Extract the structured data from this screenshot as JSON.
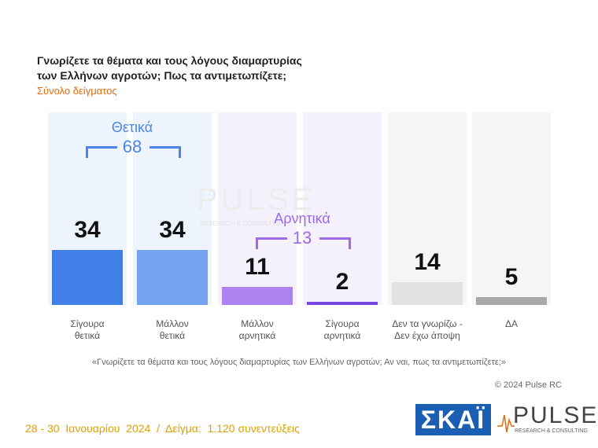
{
  "chart_data": {
    "type": "bar",
    "title": [
      "Γνωρίζετε τα θέματα και τους λόγους διαμαρτυρίας",
      "των Ελλήνων αγροτών; Πως τα αντιμετωπίζετε;"
    ],
    "subtitle": "Σύνολο δείγματος",
    "categories": [
      [
        "Σίγουρα",
        "θετικά"
      ],
      [
        "Μάλλον",
        "θετικά"
      ],
      [
        "Μάλλον",
        "αρνητικά"
      ],
      [
        "Σίγουρα",
        "αρνητικά"
      ],
      [
        "Δεν τα γνωρίζω -",
        "Δεν έχω άποψη"
      ],
      [
        "ΔΑ"
      ]
    ],
    "values": [
      34,
      34,
      11,
      2,
      14,
      5
    ],
    "colors": [
      "#3f7fe6",
      "#74a3ef",
      "#ad83f2",
      "#7b45e2",
      "#e2e2e2",
      "#a8a8a8"
    ],
    "column_colors": [
      "#eef4fd",
      "#eef4fd",
      "#f4f0fc",
      "#f4f0fc",
      "#f5f5f5",
      "#f5f5f5"
    ],
    "groups": [
      {
        "label": "Θετικά",
        "total": 68,
        "color": "#4a86e8"
      },
      {
        "label": "Αρνητικά",
        "total": 13,
        "color": "#9b6be8"
      }
    ],
    "note": "«Γνωρίζετε τα θέματα και τους λόγους διαμαρτυρίας των Ελλήνων αγροτών; Αν ναι, πως τα αντιμετωπίζετε;»",
    "copyright": "© 2024 Pulse RC",
    "footer": "28 - 30  Ιανουαρίου  2024  /  Δείγμα:  1.120 συνεντεύξεις",
    "logos": {
      "skai": "ΣΚΑΪ",
      "pulse": "PULSE",
      "pulse_tagline": "RESEARCH & CONSULTING"
    }
  }
}
